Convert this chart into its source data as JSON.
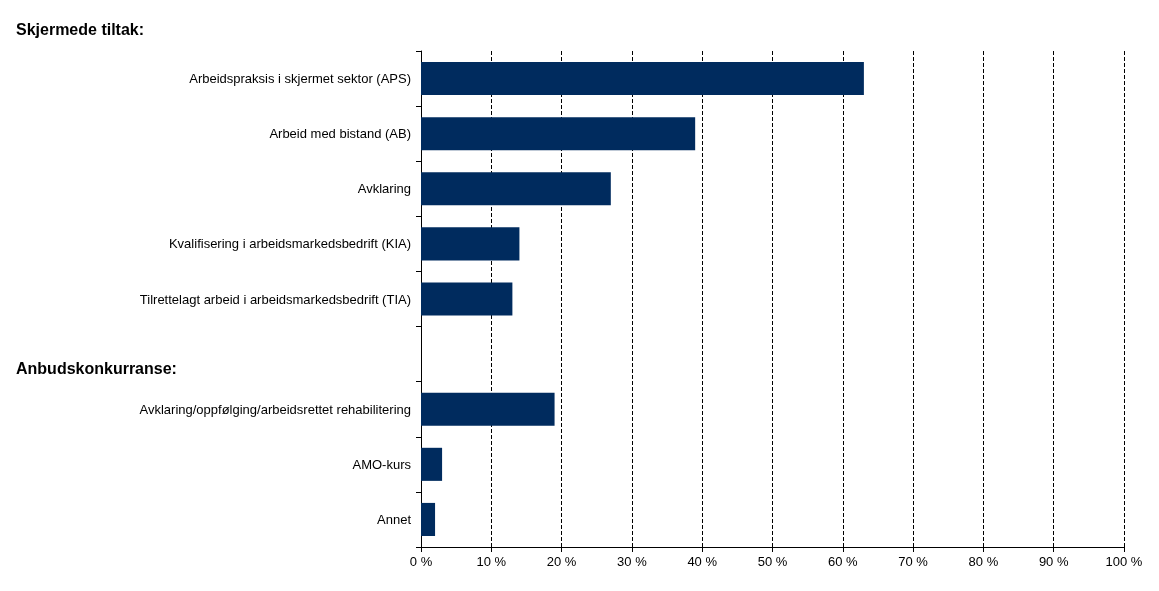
{
  "chart_data": {
    "type": "bar",
    "orientation": "horizontal",
    "categories": [
      "Arbeidspraksis i skjermet sektor (APS)",
      "Arbeid med bistand (AB)",
      "Avklaring",
      "Kvalifisering i arbeidsmarkedsbedrift (KIA)",
      "Tilrettelagt arbeid i arbeidsmarkedsbedrift (TIA)",
      null,
      "Avklaring/oppfølging/arbeidsrettet rehabilitering",
      "AMO-kurs",
      "Annet"
    ],
    "values": [
      63,
      39,
      27,
      14,
      13,
      null,
      19,
      3,
      2
    ],
    "color": "#002b5e",
    "xlim": [
      0,
      100
    ],
    "xticks": [
      {
        "value": 0,
        "label": "0 %"
      },
      {
        "value": 10,
        "label": "10 %"
      },
      {
        "value": 20,
        "label": "20 %"
      },
      {
        "value": 30,
        "label": "30 %"
      },
      {
        "value": 40,
        "label": "40 %"
      },
      {
        "value": 50,
        "label": "50 %"
      },
      {
        "value": 60,
        "label": "60 %"
      },
      {
        "value": 70,
        "label": "70 %"
      },
      {
        "value": 80,
        "label": "80 %"
      },
      {
        "value": 90,
        "label": "90 %"
      },
      {
        "value": 100,
        "label": "100 %"
      }
    ],
    "grid": "x",
    "annotations": [
      "Skjermede tiltak:",
      "Anbudskonkurranse:"
    ]
  }
}
